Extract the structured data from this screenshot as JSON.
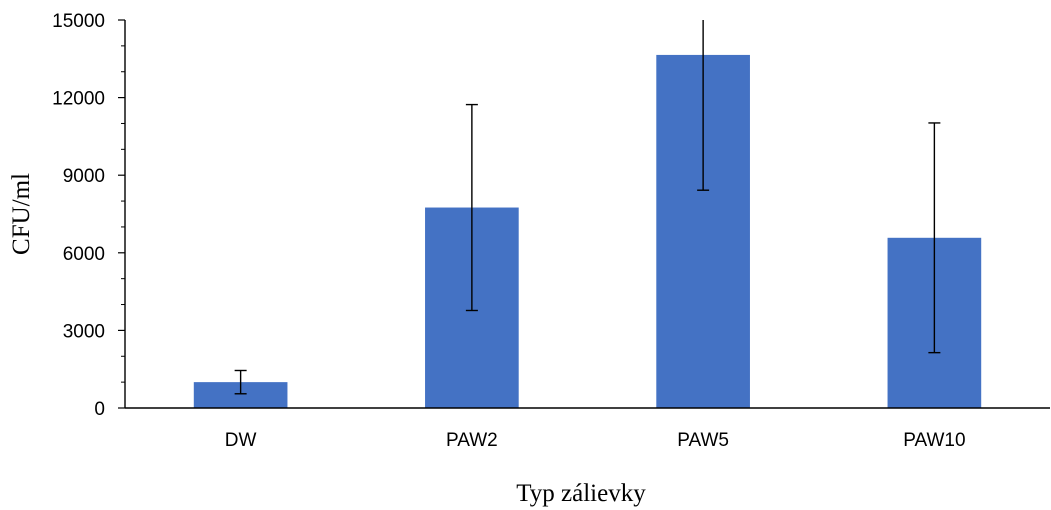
{
  "chart_data": {
    "type": "bar",
    "title": "",
    "xlabel": "Typ zálievky",
    "ylabel": "CFU/ml",
    "categories": [
      "DW",
      "PAW2",
      "PAW5",
      "PAW10"
    ],
    "values": [
      1000,
      7750,
      13650,
      6580
    ],
    "error": [
      450,
      3980,
      5230,
      4440
    ],
    "ylim": [
      0,
      15000
    ],
    "yticks": [
      0,
      3000,
      6000,
      9000,
      12000,
      15000
    ],
    "ytick_labels": [
      "0",
      "3000",
      "6000",
      "9000",
      "12000",
      "15000"
    ],
    "grid": false,
    "legend": "none",
    "bar_color": "#4472C4",
    "error_color": "#000000",
    "axis_color": "#000000"
  }
}
